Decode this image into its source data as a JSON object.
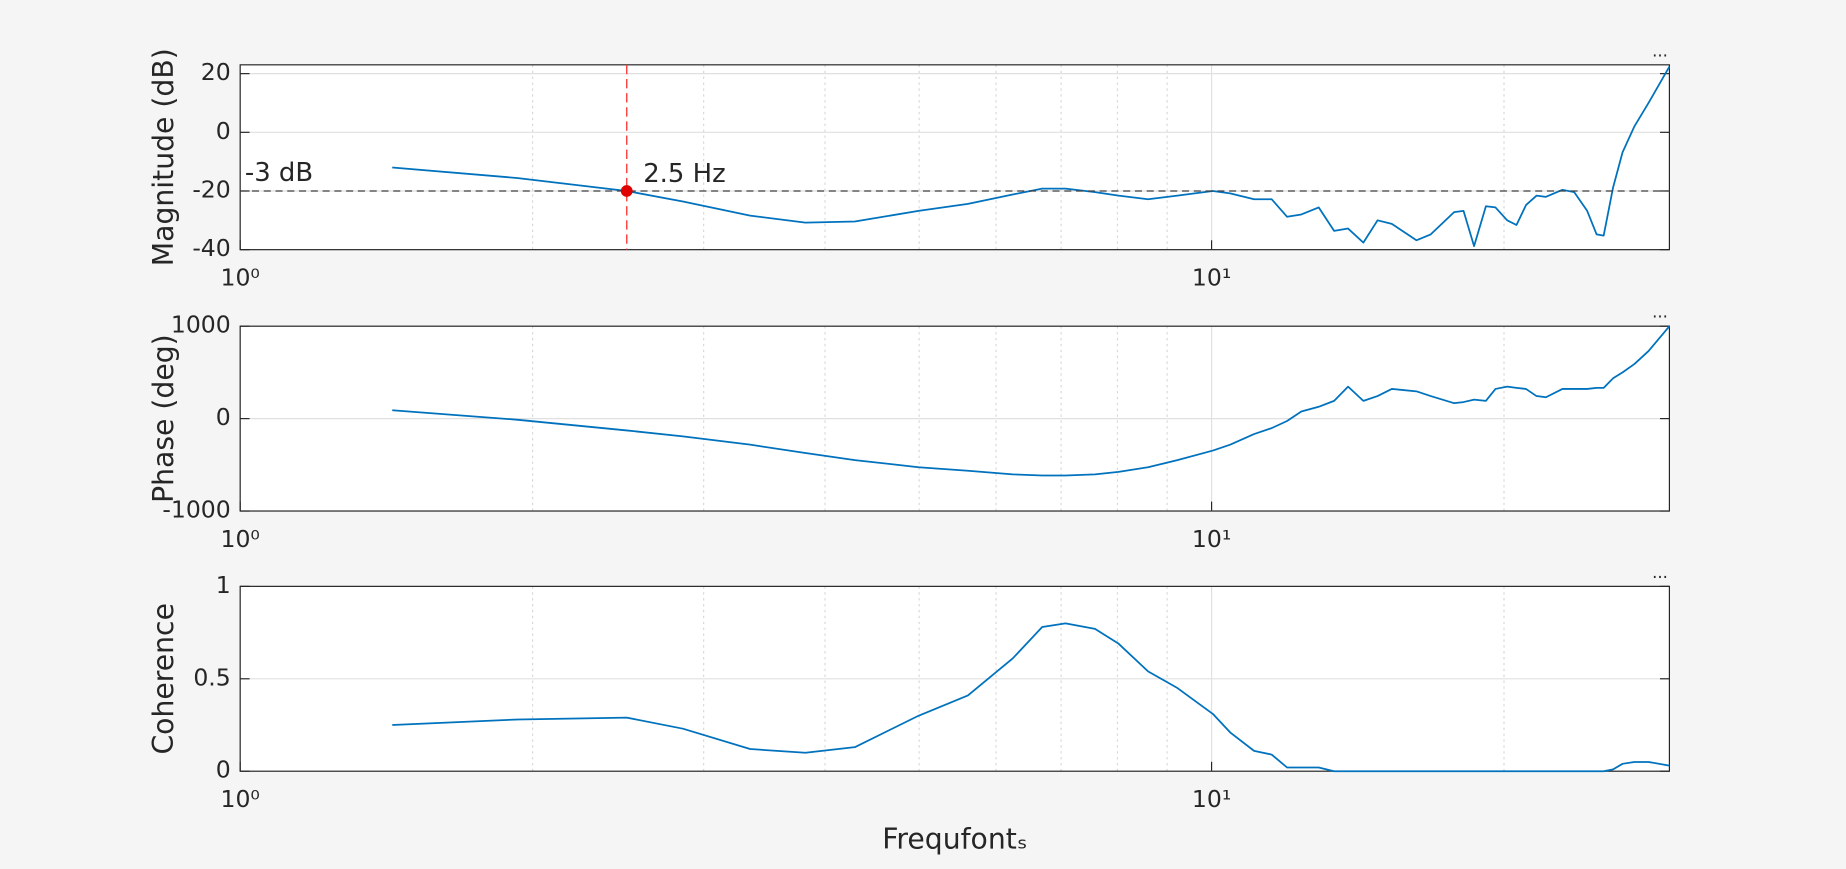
{
  "axes_toolbar": "...",
  "chart_data": [
    {
      "type": "line",
      "ylabel": "Magnitude (dB)",
      "color": "#0072bd",
      "xlog": true,
      "grid": true,
      "xlim": [
        1,
        29.6
      ],
      "xticks": [
        {
          "value": 1,
          "label": "10⁰"
        },
        {
          "value": 10,
          "label": "10¹"
        }
      ],
      "xminor_grid": [
        2,
        3,
        4,
        5,
        6,
        7,
        8,
        9,
        20
      ],
      "ylim": [
        -40,
        23
      ],
      "yticks": [
        -40,
        -20,
        0,
        20
      ],
      "x": [
        1.434,
        1.932,
        2.5,
        2.856,
        3.349,
        3.818,
        4.293,
        4.992,
        5.613,
        6.241,
        6.693,
        7.074,
        7.586,
        8.021,
        8.602,
        9.222,
        10.03,
        10.45,
        11.06,
        11.53,
        11.96,
        12.37,
        12.89,
        13.37,
        13.82,
        14.33,
        14.82,
        15.33,
        16.25,
        16.81,
        17.77,
        18.17,
        18.63,
        19.16,
        19.6,
        20.15,
        20.6,
        21.07,
        21.6,
        22.09,
        22.97,
        23.62,
        24.36,
        24.91,
        25.33,
        25.9,
        26.49,
        27.24,
        28.17,
        29.6
      ],
      "values": [
        -12,
        -15.6,
        -20,
        -23.6,
        -28.4,
        -30.8,
        -30.4,
        -26.8,
        -24.4,
        -21.2,
        -19.2,
        -19.2,
        -20.4,
        -21.6,
        -22.8,
        -21.6,
        -20,
        -20.8,
        -22.8,
        -22.8,
        -28.8,
        -28,
        -25.6,
        -33.6,
        -32.8,
        -37.6,
        -30,
        -31.2,
        -36.8,
        -34.8,
        -27.2,
        -26.8,
        -38.8,
        -25.2,
        -25.6,
        -30,
        -31.6,
        -24.8,
        -21.6,
        -22,
        -19.6,
        -20.4,
        -26.8,
        -34.8,
        -35.2,
        -18.8,
        -6.8,
        2,
        10,
        22.4
      ],
      "hline": {
        "value": -20,
        "label": "-3 dB",
        "color": "#404040"
      },
      "vline": {
        "value": 2.5,
        "label": "2.5 Hz",
        "color": "#ff4040"
      },
      "marker": {
        "x": 2.5,
        "y": -20,
        "color": "#e00000"
      }
    },
    {
      "type": "line",
      "ylabel": "Phase (deg)",
      "color": "#0072bd",
      "xlog": true,
      "grid": true,
      "xlim": [
        1,
        29.6
      ],
      "xticks": [
        {
          "value": 1,
          "label": "10⁰"
        },
        {
          "value": 10,
          "label": "10¹"
        }
      ],
      "xminor_grid": [
        2,
        3,
        4,
        5,
        6,
        7,
        8,
        9,
        20
      ],
      "ylim": [
        -1000,
        1000
      ],
      "yticks": [
        -1000,
        0,
        1000
      ],
      "x": [
        1.434,
        1.932,
        2.5,
        2.856,
        3.349,
        3.818,
        4.293,
        4.992,
        5.613,
        6.241,
        6.693,
        7.074,
        7.586,
        8.021,
        8.602,
        9.222,
        10.03,
        10.45,
        11.06,
        11.53,
        11.96,
        12.37,
        12.89,
        13.37,
        13.82,
        14.33,
        14.82,
        15.33,
        16.25,
        16.81,
        17.77,
        18.17,
        18.63,
        19.16,
        19.6,
        20.15,
        20.6,
        21.07,
        21.6,
        22.09,
        22.97,
        23.62,
        24.36,
        24.91,
        25.33,
        25.9,
        26.49,
        27.24,
        28.17,
        29.6
      ],
      "values": [
        90,
        -13,
        -128,
        -192,
        -282,
        -372,
        -449,
        -526,
        -564,
        -603,
        -615,
        -615,
        -603,
        -577,
        -526,
        -449,
        -346,
        -282,
        -167,
        -103,
        -26,
        77,
        128,
        192,
        346,
        192,
        244,
        321,
        295,
        244,
        167,
        179,
        205,
        192,
        321,
        346,
        333,
        321,
        244,
        231,
        321,
        321,
        321,
        333,
        333,
        436,
        500,
        590,
        731,
        1000
      ]
    },
    {
      "type": "line",
      "ylabel": "Coherence",
      "xlabel": "Frequfontₛ",
      "color": "#0072bd",
      "xlog": true,
      "grid": true,
      "xlim": [
        1,
        29.6
      ],
      "xticks": [
        {
          "value": 1,
          "label": "10⁰"
        },
        {
          "value": 10,
          "label": "10¹"
        }
      ],
      "xminor_grid": [
        2,
        3,
        4,
        5,
        6,
        7,
        8,
        9,
        20
      ],
      "ylim": [
        0,
        1
      ],
      "yticks": [
        0,
        0.5,
        1
      ],
      "x": [
        1.434,
        1.932,
        2.5,
        2.856,
        3.349,
        3.818,
        4.293,
        4.992,
        5.613,
        6.241,
        6.693,
        7.074,
        7.586,
        8.021,
        8.602,
        9.222,
        10.03,
        10.45,
        11.06,
        11.53,
        11.96,
        12.37,
        12.89,
        13.37,
        13.82,
        14.33,
        14.82,
        15.33,
        16.25,
        16.81,
        17.77,
        18.17,
        18.63,
        19.16,
        19.6,
        20.15,
        20.6,
        21.07,
        21.6,
        22.09,
        22.97,
        23.62,
        24.36,
        24.91,
        25.33,
        25.9,
        26.49,
        27.24,
        28.17,
        29.6
      ],
      "values": [
        0.25,
        0.28,
        0.29,
        0.23,
        0.12,
        0.1,
        0.13,
        0.3,
        0.41,
        0.61,
        0.78,
        0.8,
        0.77,
        0.69,
        0.54,
        0.45,
        0.31,
        0.21,
        0.11,
        0.09,
        0.02,
        0.02,
        0.02,
        0,
        0,
        0,
        0,
        0,
        0,
        0,
        0,
        0,
        0,
        0,
        0,
        0,
        0,
        0,
        0,
        0,
        0,
        0,
        0,
        0,
        0,
        0.01,
        0.04,
        0.05,
        0.05,
        0.03
      ]
    }
  ]
}
